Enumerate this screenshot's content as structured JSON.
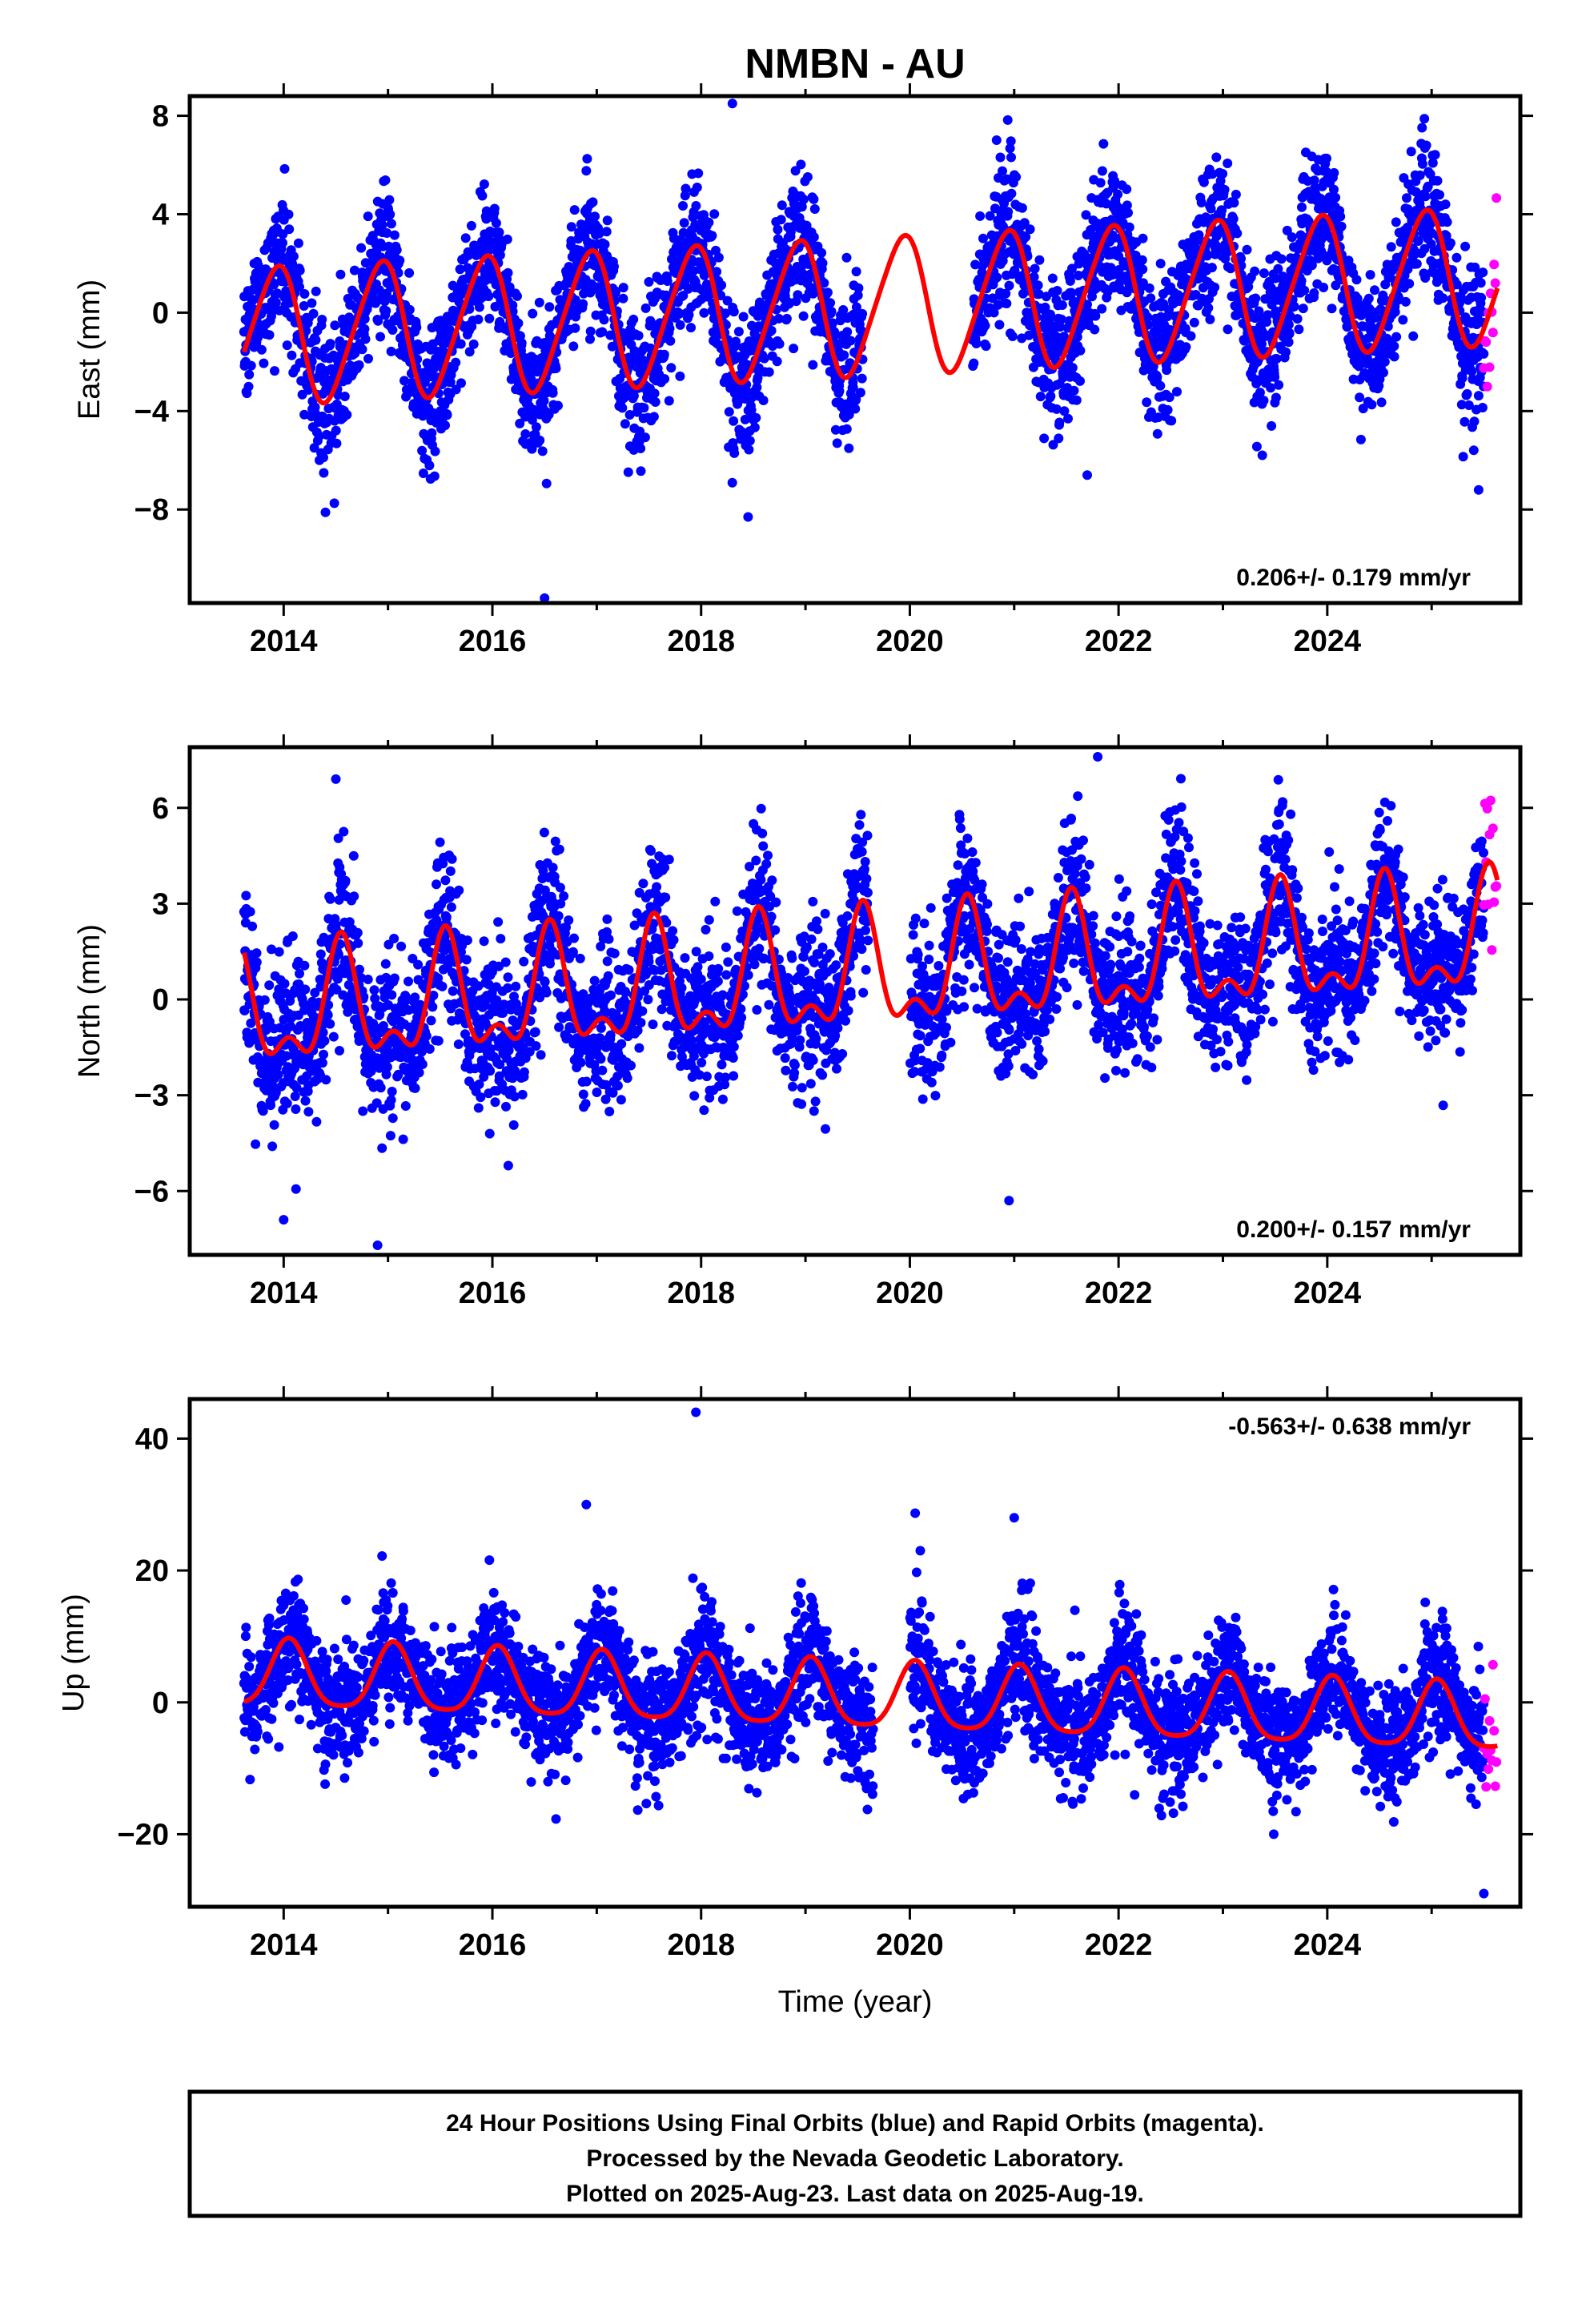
{
  "title": "NMBN - AU",
  "xlabel": "Time (year)",
  "colors": {
    "final": "#0000ff",
    "rapid": "#ff00ff",
    "model": "#ff0000",
    "axis": "#000000"
  },
  "footer": {
    "line1": "24 Hour Positions Using Final Orbits (blue) and Rapid Orbits (magenta).",
    "line2": "Processed by the Nevada Geodetic Laboratory.",
    "line3": "Plotted on 2025-Aug-23. Last data on 2025-Aug-19."
  },
  "chart_data": [
    {
      "type": "scatter",
      "component": "east",
      "ylabel": "East (mm)",
      "xlim": [
        2013.1,
        2025.85
      ],
      "ylim": [
        -11.8,
        8.8
      ],
      "xticks": [
        2014,
        2016,
        2018,
        2020,
        2022,
        2024
      ],
      "xtick_labels": [
        "2014",
        "2016",
        "2018",
        "2020",
        "2022",
        "2024"
      ],
      "yticks": [
        -8,
        -4,
        0,
        4,
        8
      ],
      "ytick_labels": [
        "−8",
        "−4",
        "0",
        "4",
        "8"
      ],
      "rate_label": "0.206+/- 0.179 mm/yr",
      "rate_position": "bottom-right",
      "model": {
        "offset": -0.9,
        "trend": 0.206,
        "t0": 2014.0,
        "annual_amp": 2.75,
        "annual_phase": 2013.92,
        "semi_amp": 0.35,
        "semi_phase": 2014.05,
        "amp_drift": 0.0
      },
      "noise_sd": 1.3,
      "gaps": [
        [
          2019.55,
          2020.6
        ]
      ],
      "final_range": [
        2013.62,
        2025.5
      ],
      "rapid_range": [
        2025.5,
        2025.63
      ],
      "outliers": [
        [
          2018.3,
          8.5
        ],
        [
          2016.5,
          -11.6
        ],
        [
          2021.7,
          -6.6
        ],
        [
          2018.45,
          -8.3
        ],
        [
          2025.45,
          -7.2
        ]
      ]
    },
    {
      "type": "scatter",
      "component": "north",
      "ylabel": "North (mm)",
      "xlim": [
        2013.1,
        2025.85
      ],
      "ylim": [
        -8.0,
        7.9
      ],
      "xticks": [
        2014,
        2016,
        2018,
        2020,
        2022,
        2024
      ],
      "xtick_labels": [
        "2014",
        "2016",
        "2018",
        "2020",
        "2022",
        "2024"
      ],
      "yticks": [
        -6,
        -3,
        0,
        3,
        6
      ],
      "ytick_labels": [
        "−6",
        "−3",
        "0",
        "3",
        "6"
      ],
      "rate_label": "0.200+/- 0.157 mm/yr",
      "rate_position": "bottom-right",
      "model": {
        "offset": -0.45,
        "trend": 0.2,
        "t0": 2014.0,
        "annual_amp": 1.6,
        "annual_phase": 2014.55,
        "semi_amp": 0.85,
        "semi_phase": 2014.55,
        "amp_drift": 0.0
      },
      "noise_sd": 1.1,
      "gaps": [
        [
          2019.6,
          2020.0
        ]
      ],
      "final_range": [
        2013.62,
        2025.5
      ],
      "rapid_range": [
        2025.5,
        2025.63
      ],
      "outliers": [
        [
          2014.5,
          6.9
        ],
        [
          2021.8,
          7.6
        ],
        [
          2014.9,
          -7.7
        ],
        [
          2014.0,
          -6.9
        ],
        [
          2020.95,
          -6.3
        ]
      ]
    },
    {
      "type": "scatter",
      "component": "up",
      "ylabel": "Up (mm)",
      "xlim": [
        2013.1,
        2025.85
      ],
      "ylim": [
        -31.0,
        46.0
      ],
      "xticks": [
        2014,
        2016,
        2018,
        2020,
        2022,
        2024
      ],
      "xtick_labels": [
        "2014",
        "2016",
        "2018",
        "2020",
        "2022",
        "2024"
      ],
      "yticks": [
        -20,
        0,
        20,
        40
      ],
      "ytick_labels": [
        "−20",
        "0",
        "20",
        "40"
      ],
      "rate_label": "-0.563+/- 0.638 mm/yr",
      "rate_position": "top-right",
      "model": {
        "offset": 3.8,
        "trend": -0.563,
        "t0": 2014.0,
        "annual_amp": 5.0,
        "annual_phase": 2014.05,
        "semi_amp": 1.0,
        "semi_phase": 2014.05,
        "amp_drift": 0.0
      },
      "noise_sd": 4.2,
      "gaps": [
        [
          2019.65,
          2020.0
        ]
      ],
      "final_range": [
        2013.62,
        2025.5
      ],
      "rapid_range": [
        2025.5,
        2025.63
      ],
      "outliers": [
        [
          2017.95,
          44.0
        ],
        [
          2016.9,
          30.0
        ],
        [
          2021.0,
          28.0
        ],
        [
          2020.1,
          23.0
        ],
        [
          2025.5,
          -29.0
        ]
      ]
    }
  ]
}
